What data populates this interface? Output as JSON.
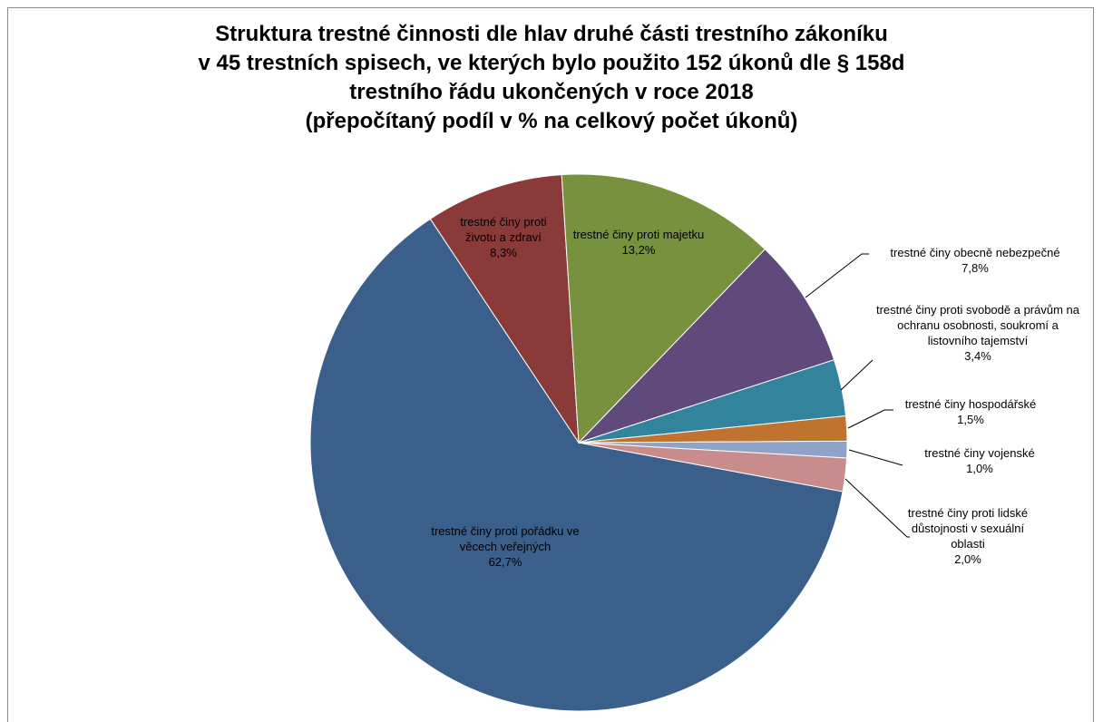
{
  "chart_data": {
    "type": "pie",
    "title": "Struktura trestné činnosti dle hlav druhé části trestního zákoníku\nv 45 trestních spisech, ve kterých bylo použito 152 úkonů dle § 158d\ntrestního řádu ukončených v roce 2018\n(přepočítaný podíl v % na celkový počet úkonů)",
    "categories": [
      "trestné činy proti pořádku ve věcech veřejných",
      "trestné činy proti životu a zdraví",
      "trestné činy proti majetku",
      "trestné činy obecně nebezpečné",
      "trestné činy proti svobodě a právům na ochranu osobnosti, soukromí a listovního tajemství",
      "trestné činy hospodářské",
      "trestné činy vojenské",
      "trestné činy proti lidské důstojnosti v sexuální oblasti"
    ],
    "values": [
      62.7,
      8.3,
      13.2,
      7.8,
      3.4,
      1.5,
      1.0,
      2.0
    ],
    "value_labels": [
      "62,7%",
      "8,3%",
      "13,2%",
      "7,8%",
      "3,4%",
      "1,5%",
      "1,0%",
      "2,0%"
    ],
    "colors": [
      "#3b5f8b",
      "#8b3a3a",
      "#77913f",
      "#5f4a7b",
      "#31849b",
      "#c0722f",
      "#8ea3c7",
      "#c98c8c"
    ]
  }
}
